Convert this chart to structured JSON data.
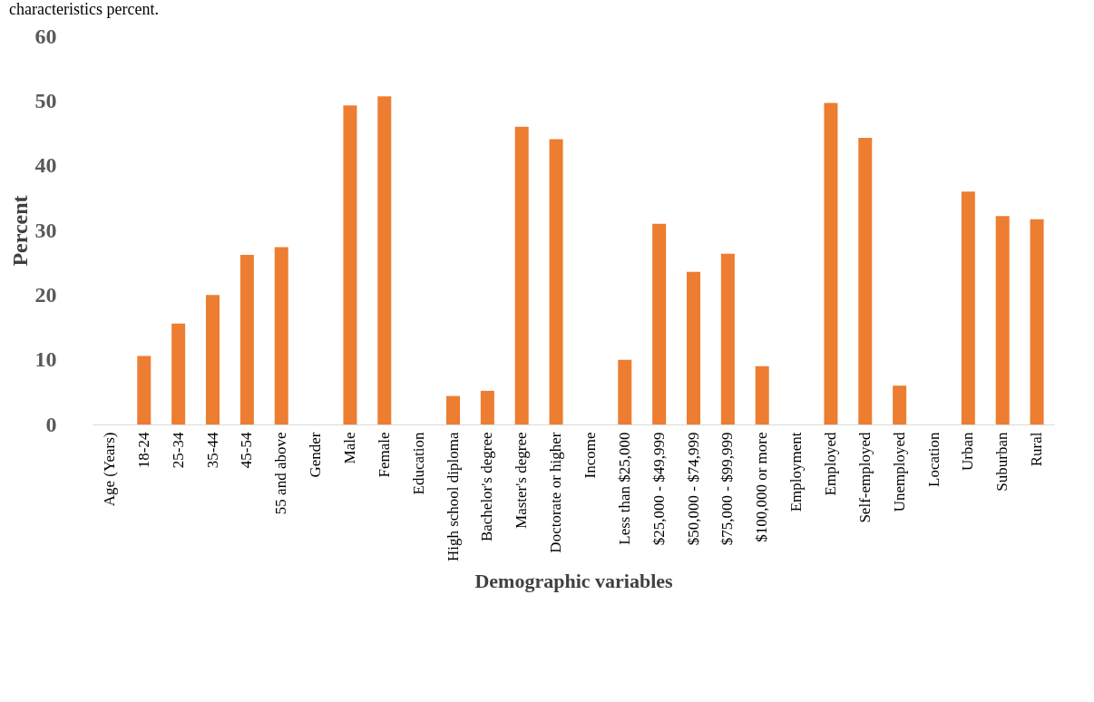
{
  "chart_data": {
    "type": "bar",
    "xlabel": "Demographic variables",
    "ylabel": "Percent",
    "annotations": [
      "characteristics percent."
    ],
    "categories": [
      "Age (Years)",
      "18-24",
      "25-34",
      "35-44",
      "45-54",
      "55 and above",
      "Gender",
      "Male",
      "Female",
      "Education",
      "High school diploma",
      "Bachelor's degree",
      "Master's degree",
      "Doctorate or higher",
      "Income",
      "Less than $25,000",
      "$25,000 - $49,999",
      "$50,000 - $74,999",
      "$75,000 - $99,999",
      "$100,000 or more",
      "Employment",
      "Employed",
      "Self-employed",
      "Unemployed",
      "Location",
      "Urban",
      "Suburban",
      "Rural"
    ],
    "series": [
      {
        "color": "#ed7d31",
        "values": [
          null,
          10.6,
          15.6,
          20.0,
          26.2,
          27.4,
          null,
          49.3,
          50.7,
          null,
          4.4,
          5.2,
          46.0,
          44.1,
          null,
          10.0,
          31.0,
          23.6,
          26.4,
          9.0,
          null,
          49.7,
          44.3,
          6.0,
          null,
          36.0,
          32.2,
          31.7
        ]
      }
    ],
    "ylim": [
      0,
      60
    ],
    "yticks": [
      0,
      10,
      20,
      30,
      40,
      50,
      60
    ],
    "grid": false
  }
}
